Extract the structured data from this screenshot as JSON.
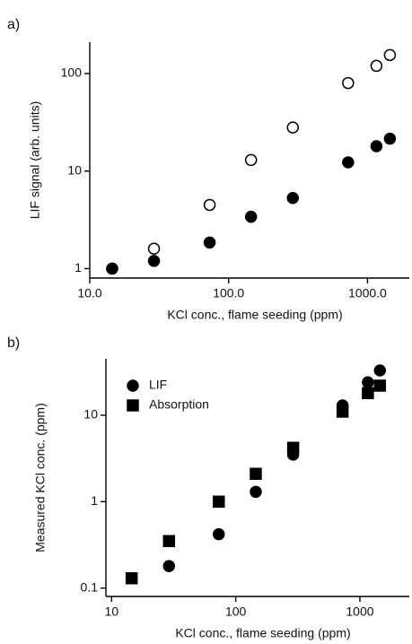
{
  "chart_data": [
    {
      "type": "scatter",
      "panel_label": "a)",
      "x_label": "KCl conc., flame seeding (ppm)",
      "y_label": "LIF signal (arb. units)",
      "log_x": true,
      "log_y": true,
      "xlim": [
        10,
        2000
      ],
      "ylim": [
        0.8,
        210
      ],
      "xticks": [
        {
          "value": 10,
          "label": "10.0"
        },
        {
          "value": 100,
          "label": "100.0"
        },
        {
          "value": 1000,
          "label": "1000.0"
        }
      ],
      "yticks": [
        1,
        10,
        100
      ],
      "series": [
        {
          "marker": "circle",
          "filled": false,
          "color": "#000000",
          "x": [
            14.5,
            29,
            73,
            145,
            290,
            725,
            1160,
            1450
          ],
          "values": [
            1.0,
            1.6,
            4.5,
            13,
            28,
            80,
            120,
            155
          ]
        },
        {
          "marker": "circle",
          "filled": true,
          "color": "#000000",
          "x": [
            14.5,
            29,
            73,
            145,
            290,
            725,
            1160,
            1450
          ],
          "values": [
            1.0,
            1.2,
            1.85,
            3.4,
            5.3,
            12.3,
            18,
            21.5
          ]
        }
      ]
    },
    {
      "type": "scatter",
      "panel_label": "b)",
      "x_label": "KCl conc., flame seeding (ppm)",
      "y_label": "Measured KCl conc. (ppm)",
      "log_x": true,
      "log_y": true,
      "xlim": [
        9,
        2500
      ],
      "ylim": [
        0.08,
        45
      ],
      "xticks": [
        10,
        100,
        1000
      ],
      "yticks": [
        0.1,
        1,
        10
      ],
      "legend": "top-left",
      "series": [
        {
          "name": "LIF",
          "marker": "circle",
          "filled": true,
          "color": "#000000",
          "x": [
            14.5,
            29,
            73,
            145,
            290,
            725,
            1160,
            1450
          ],
          "values": [
            0.13,
            0.18,
            0.42,
            1.3,
            3.5,
            13,
            24,
            33
          ]
        },
        {
          "name": "Absorption",
          "marker": "square",
          "filled": true,
          "color": "#000000",
          "x": [
            14.5,
            29,
            73,
            145,
            290,
            725,
            1160,
            1450
          ],
          "values": [
            0.13,
            0.35,
            1.0,
            2.1,
            4.2,
            11,
            18,
            22
          ]
        }
      ]
    }
  ]
}
